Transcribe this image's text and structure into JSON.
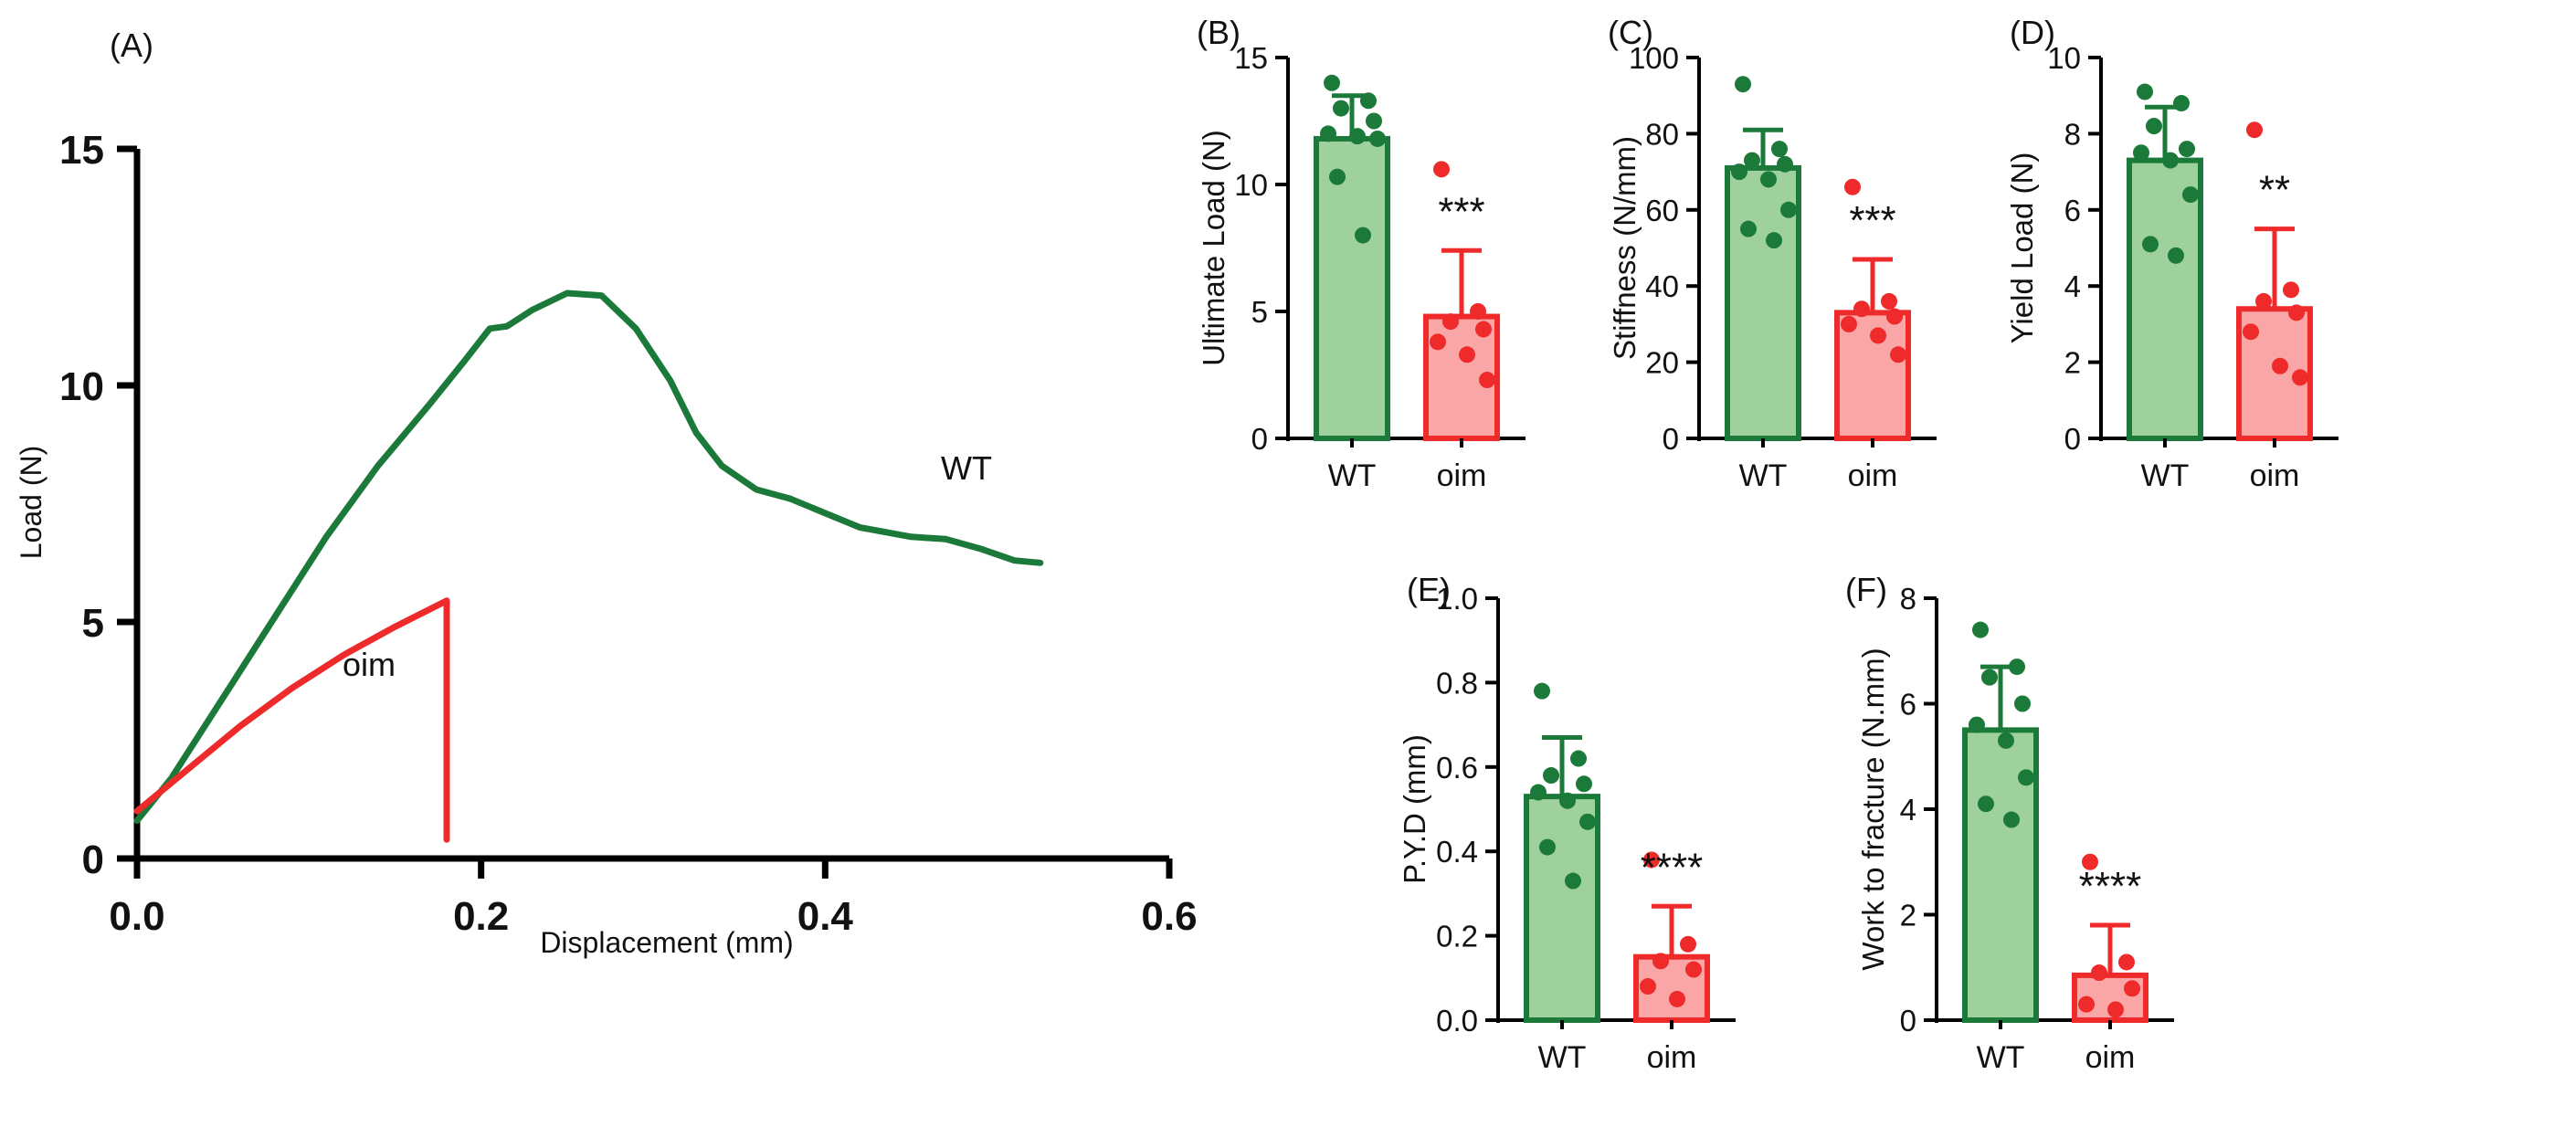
{
  "colors": {
    "wt": "#1b7a3a",
    "wt_fill": "#9ed19b",
    "oim": "#ee2a2a",
    "oim_fill": "#fba6a6",
    "axis": "#000000"
  },
  "chart_data": [
    {
      "panel": "(A)",
      "type": "line",
      "xlabel": "Displacement (mm)",
      "ylabel": "Load (N)",
      "xlim": [
        0,
        0.6
      ],
      "ylim": [
        0,
        15
      ],
      "xticks": [
        "0.0",
        "0.2",
        "0.4",
        "0.6"
      ],
      "yticks": [
        "0",
        "5",
        "10",
        "15"
      ],
      "series": [
        {
          "name": "WT",
          "label": "WT",
          "color": "#1b7a3a",
          "points": [
            [
              0,
              0.8
            ],
            [
              0.02,
              1.7
            ],
            [
              0.05,
              3.4
            ],
            [
              0.08,
              5.1
            ],
            [
              0.11,
              6.8
            ],
            [
              0.14,
              8.3
            ],
            [
              0.17,
              9.6
            ],
            [
              0.19,
              10.5
            ],
            [
              0.205,
              11.2
            ],
            [
              0.215,
              11.25
            ],
            [
              0.23,
              11.6
            ],
            [
              0.25,
              11.95
            ],
            [
              0.27,
              11.9
            ],
            [
              0.29,
              11.2
            ],
            [
              0.31,
              10.1
            ],
            [
              0.325,
              9.0
            ],
            [
              0.34,
              8.3
            ],
            [
              0.36,
              7.8
            ],
            [
              0.38,
              7.6
            ],
            [
              0.4,
              7.3
            ],
            [
              0.42,
              7.0
            ],
            [
              0.45,
              6.8
            ],
            [
              0.47,
              6.75
            ],
            [
              0.49,
              6.55
            ],
            [
              0.51,
              6.3
            ],
            [
              0.525,
              6.25
            ]
          ]
        },
        {
          "name": "oim",
          "label": "oim",
          "color": "#ee2a2a",
          "points": [
            [
              0,
              1.0
            ],
            [
              0.03,
              1.9
            ],
            [
              0.06,
              2.8
            ],
            [
              0.09,
              3.6
            ],
            [
              0.12,
              4.3
            ],
            [
              0.15,
              4.9
            ],
            [
              0.18,
              5.45
            ],
            [
              0.18,
              0.4
            ]
          ]
        }
      ]
    },
    {
      "panel": "(B)",
      "type": "bar",
      "ylabel": "Ultimate Load (N)",
      "categories": [
        "WT",
        "oim"
      ],
      "ylim": [
        0,
        15
      ],
      "yticks": [
        "0",
        "5",
        "10",
        "15"
      ],
      "values": [
        11.8,
        4.8
      ],
      "sd": [
        1.7,
        2.6
      ],
      "significance": "***",
      "points": [
        [
          14.0,
          13.3,
          13.0,
          12.5,
          12.0,
          11.9,
          11.8,
          10.3,
          8.0
        ],
        [
          10.6,
          5.0,
          4.6,
          4.3,
          3.8,
          3.3,
          2.3
        ]
      ]
    },
    {
      "panel": "(C)",
      "type": "bar",
      "ylabel": "Stiffness (N/mm)",
      "categories": [
        "WT",
        "oim"
      ],
      "ylim": [
        0,
        100
      ],
      "yticks": [
        "0",
        "20",
        "40",
        "60",
        "80",
        "100"
      ],
      "values": [
        71,
        33
      ],
      "sd": [
        10,
        14
      ],
      "significance": "***",
      "points": [
        [
          93,
          76,
          73,
          72,
          70,
          68,
          60,
          55,
          52
        ],
        [
          66,
          36,
          34,
          32,
          30,
          27,
          22
        ]
      ]
    },
    {
      "panel": "(D)",
      "type": "bar",
      "ylabel": "Yield Load (N)",
      "categories": [
        "WT",
        "oim"
      ],
      "ylim": [
        0,
        10
      ],
      "yticks": [
        "0",
        "2",
        "4",
        "6",
        "8",
        "10"
      ],
      "values": [
        7.3,
        3.4
      ],
      "sd": [
        1.4,
        2.1
      ],
      "significance": "**",
      "points": [
        [
          9.1,
          8.8,
          8.2,
          7.6,
          7.5,
          7.3,
          6.4,
          5.1,
          4.8
        ],
        [
          8.1,
          3.9,
          3.6,
          3.3,
          2.8,
          1.9,
          1.6
        ]
      ]
    },
    {
      "panel": "(E)",
      "type": "bar",
      "ylabel": "P.Y.D (mm)",
      "categories": [
        "WT",
        "oim"
      ],
      "ylim": [
        0,
        1.0
      ],
      "yticks": [
        "0.0",
        "0.2",
        "0.4",
        "0.6",
        "0.8",
        "1.0"
      ],
      "values": [
        0.53,
        0.15
      ],
      "sd": [
        0.14,
        0.12
      ],
      "significance": "****",
      "points": [
        [
          0.78,
          0.62,
          0.58,
          0.56,
          0.54,
          0.52,
          0.47,
          0.41,
          0.33
        ],
        [
          0.38,
          0.18,
          0.14,
          0.12,
          0.08,
          0.05
        ]
      ]
    },
    {
      "panel": "(F)",
      "type": "bar",
      "ylabel": "Work to fracture (N.mm)",
      "categories": [
        "WT",
        "oim"
      ],
      "ylim": [
        0,
        8
      ],
      "yticks": [
        "0",
        "2",
        "4",
        "6",
        "8"
      ],
      "values": [
        5.5,
        0.85
      ],
      "sd": [
        1.2,
        0.95
      ],
      "significance": "****",
      "points": [
        [
          7.4,
          6.7,
          6.5,
          6.0,
          5.6,
          5.3,
          4.6,
          4.1,
          3.8
        ],
        [
          3.0,
          1.1,
          0.9,
          0.6,
          0.3,
          0.2
        ]
      ]
    }
  ]
}
